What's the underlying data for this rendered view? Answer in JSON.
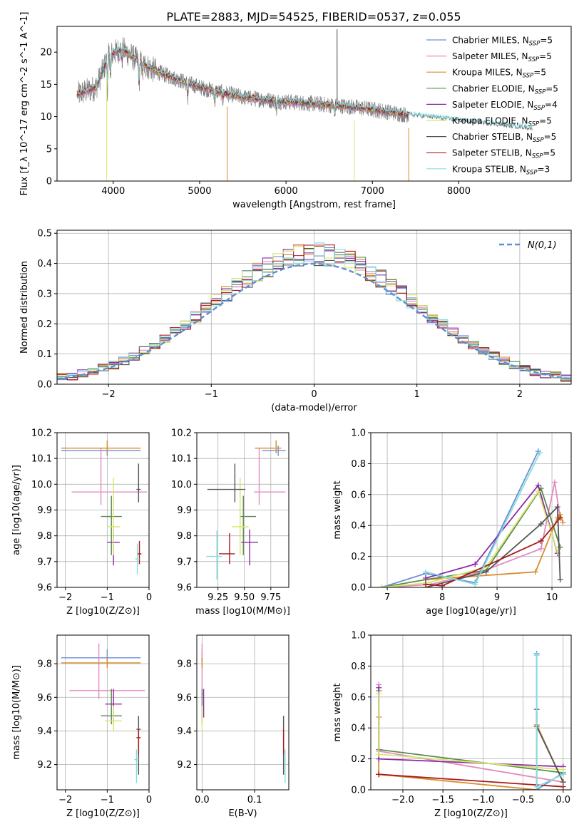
{
  "title": "PLATE=2883, MJD=54525, FIBERID=0537, z=0.055",
  "colors": {
    "s0": "#6b8fd6",
    "s1": "#e38bbf",
    "s2": "#d98b2b",
    "s3": "#5a8a50",
    "s4": "#8e2aa6",
    "s5": "#d6e86a",
    "s6": "#555555",
    "s7": "#a81b1b",
    "s8": "#86dde0",
    "gauss": "#5b8fd6",
    "grid": "#b0b0b0"
  },
  "legend_labels": [
    "Chabrier MILES, N_SSP=5",
    "Salpeter MILES, N_SSP=5",
    "Kroupa MILES, N_SSP=5",
    "Chabrier ELODIE, N_SSP=5",
    "Salpeter ELODIE, N_SSP=4",
    "Kroupa ELODIE, N_SSP=5",
    "Chabrier STELIB, N_SSP=5",
    "Salpeter STELIB, N_SSP=5",
    "Kroupa STELIB, N_SSP=3"
  ],
  "chart_data": [
    {
      "id": "spectrum",
      "type": "line",
      "xlabel": "wavelength [Angstrom, rest frame]",
      "ylabel": "Flux [f_λ 10^-17 erg cm^-2 s^-1 A^-1]",
      "xlim": [
        3350,
        9300
      ],
      "ylim": [
        0,
        24
      ],
      "xticks": [
        4000,
        5000,
        6000,
        7000,
        8000
      ],
      "yticks": [
        0,
        5,
        10,
        15,
        20
      ],
      "continuum": {
        "x": [
          3600,
          3800,
          3950,
          4100,
          4300,
          4500,
          4700,
          4900,
          5100,
          5300,
          5500,
          5700,
          5900,
          6100,
          6300,
          6500,
          6700,
          6900,
          7100,
          7300,
          7420
        ],
        "y": [
          13.5,
          14.5,
          19.5,
          20.5,
          18.5,
          17.0,
          16.0,
          15.0,
          14.2,
          13.6,
          13.0,
          12.7,
          12.4,
          12.2,
          12.0,
          11.8,
          11.6,
          11.3,
          10.9,
          10.5,
          10.2
        ]
      },
      "data_range": [
        3590,
        7420
      ],
      "models_range": [
        3580,
        7420
      ],
      "models_extension": [
        7420,
        8850
      ]
    },
    {
      "id": "residuals",
      "type": "line",
      "xlabel": "(data-model)/error",
      "ylabel": "Normed distribution",
      "xlim": [
        -2.5,
        2.5
      ],
      "ylim": [
        0,
        0.51
      ],
      "xticks": [
        -2,
        -1,
        0,
        1,
        2
      ],
      "yticks": [
        0.0,
        0.1,
        0.2,
        0.3,
        0.4,
        0.5
      ],
      "legend": "N(0,1)",
      "bin_width": 0.1
    },
    {
      "id": "age_vs_Z",
      "type": "scatter",
      "xlabel": "Z [log10(Z/Z⊙)]",
      "ylabel": "age  [log10(age/yr)]",
      "xlim": [
        -2.2,
        0.0
      ],
      "ylim": [
        9.6,
        10.2
      ],
      "xticks": [
        -2,
        -1,
        0
      ],
      "yticks": [
        9.6,
        9.7,
        9.8,
        9.9,
        10.0,
        10.1,
        10.2
      ],
      "points": [
        {
          "s": 0,
          "x": -1.0,
          "xerr": [
            1.1,
            0.8
          ],
          "y": 10.13,
          "yerr": [
            0.02,
            0.02
          ]
        },
        {
          "s": 1,
          "x": -1.15,
          "xerr": [
            0.7,
            1.1
          ],
          "y": 9.97,
          "yerr": [
            0.05,
            0.17
          ]
        },
        {
          "s": 2,
          "x": -1.0,
          "xerr": [
            1.1,
            0.8
          ],
          "y": 10.14,
          "yerr": [
            0.02,
            0.03
          ]
        },
        {
          "s": 3,
          "x": -0.9,
          "xerr": [
            0.25,
            0.25
          ],
          "y": 9.875,
          "yerr": [
            0.15,
            0.08
          ]
        },
        {
          "s": 4,
          "x": -0.85,
          "xerr": [
            0.15,
            0.15
          ],
          "y": 9.775,
          "yerr": [
            0.09,
            0.05
          ]
        },
        {
          "s": 5,
          "x": -0.85,
          "xerr": [
            0.15,
            0.15
          ],
          "y": 9.835,
          "yerr": [
            0.11,
            0.19
          ]
        },
        {
          "s": 6,
          "x": -0.25,
          "xerr": [
            0.05,
            0.05
          ],
          "y": 9.98,
          "yerr": [
            0.05,
            0.1
          ]
        },
        {
          "s": 7,
          "x": -0.23,
          "xerr": [
            0.05,
            0.05
          ],
          "y": 9.73,
          "yerr": [
            0.04,
            0.05
          ]
        },
        {
          "s": 8,
          "x": -0.28,
          "xerr": [
            0.05,
            0.05
          ],
          "y": 9.71,
          "yerr": [
            0.06,
            0.06
          ]
        }
      ]
    },
    {
      "id": "age_vs_mass",
      "type": "scatter",
      "xlabel": "mass [log10(M/M⊙)]",
      "ylabel": "",
      "xlim": [
        9.05,
        9.92
      ],
      "ylim": [
        9.6,
        10.2
      ],
      "xticks": [
        9.25,
        9.5,
        9.75
      ],
      "yticks": [
        9.6,
        9.7,
        9.8,
        9.9,
        10.0,
        10.1,
        10.2
      ],
      "points": [
        {
          "s": 0,
          "x": 9.82,
          "xerr": [
            0.15,
            0.07
          ],
          "y": 10.13,
          "yerr": [
            0.02,
            0.02
          ]
        },
        {
          "s": 1,
          "x": 9.64,
          "xerr": [
            0.05,
            0.25
          ],
          "y": 9.97,
          "yerr": [
            0.05,
            0.17
          ]
        },
        {
          "s": 2,
          "x": 9.8,
          "xerr": [
            0.2,
            0.05
          ],
          "y": 10.14,
          "yerr": [
            0.02,
            0.03
          ]
        },
        {
          "s": 3,
          "x": 9.49,
          "xerr": [
            0.03,
            0.12
          ],
          "y": 9.875,
          "yerr": [
            0.15,
            0.08
          ]
        },
        {
          "s": 4,
          "x": 9.55,
          "xerr": [
            0.08,
            0.08
          ],
          "y": 9.775,
          "yerr": [
            0.09,
            0.05
          ]
        },
        {
          "s": 5,
          "x": 9.46,
          "xerr": [
            0.08,
            0.08
          ],
          "y": 9.835,
          "yerr": [
            0.11,
            0.19
          ]
        },
        {
          "s": 6,
          "x": 9.41,
          "xerr": [
            0.26,
            0.1
          ],
          "y": 9.98,
          "yerr": [
            0.05,
            0.1
          ]
        },
        {
          "s": 7,
          "x": 9.36,
          "xerr": [
            0.1,
            0.05
          ],
          "y": 9.73,
          "yerr": [
            0.04,
            0.08
          ]
        },
        {
          "s": 8,
          "x": 9.24,
          "xerr": [
            0.1,
            0.05
          ],
          "y": 9.72,
          "yerr": [
            0.09,
            0.1
          ]
        }
      ]
    },
    {
      "id": "weight_vs_age",
      "type": "line",
      "xlabel": "age  [log10(age/yr)]",
      "ylabel": "mass weight",
      "xlim": [
        6.7,
        10.35
      ],
      "ylim": [
        0,
        1
      ],
      "xticks": [
        7,
        8,
        9,
        10
      ],
      "yticks": [
        0.0,
        0.2,
        0.4,
        0.6,
        0.8,
        1.0
      ],
      "series": [
        {
          "s": 0,
          "x": [
            6.9,
            7.7,
            8.6,
            9.75
          ],
          "y": [
            0.0,
            0.09,
            0.03,
            0.88
          ]
        },
        {
          "s": 1,
          "x": [
            7.0,
            7.8,
            8.7,
            9.8,
            10.05,
            10.15
          ],
          "y": [
            0.0,
            0.02,
            0.1,
            0.25,
            0.68,
            0.45
          ]
        },
        {
          "s": 2,
          "x": [
            7.7,
            9.7,
            10.1,
            10.15,
            10.2
          ],
          "y": [
            0.05,
            0.1,
            0.45,
            0.47,
            0.42
          ]
        },
        {
          "s": 3,
          "x": [
            6.9,
            7.7,
            8.8,
            9.8,
            10.15
          ],
          "y": [
            0.0,
            0.05,
            0.11,
            0.64,
            0.26
          ]
        },
        {
          "s": 4,
          "x": [
            7.7,
            8.6,
            9.75,
            10.1
          ],
          "y": [
            0.06,
            0.15,
            0.66,
            0.22
          ]
        },
        {
          "s": 5,
          "x": [
            6.9,
            7.75,
            8.8,
            9.75,
            10.1
          ],
          "y": [
            0.0,
            0.03,
            0.13,
            0.62,
            0.23
          ]
        },
        {
          "s": 6,
          "x": [
            7.7,
            8.8,
            9.8,
            10.1,
            10.15
          ],
          "y": [
            0.0,
            0.1,
            0.41,
            0.52,
            0.05
          ]
        },
        {
          "s": 7,
          "x": [
            7.7,
            8.0,
            9.8,
            10.15
          ],
          "y": [
            0.02,
            0.01,
            0.3,
            0.45
          ]
        },
        {
          "s": 8,
          "x": [
            7.7,
            8.6,
            9.78
          ],
          "y": [
            0.1,
            0.02,
            0.87
          ]
        }
      ]
    },
    {
      "id": "mass_vs_Z",
      "type": "scatter",
      "xlabel": "Z [log10(Z/Z⊙)]",
      "ylabel": "mass [log10(M/M⊙)]",
      "xlim": [
        -2.2,
        0.0
      ],
      "ylim": [
        9.05,
        9.97
      ],
      "xticks": [
        -2,
        -1,
        0
      ],
      "yticks": [
        9.2,
        9.4,
        9.6,
        9.8
      ],
      "points": [
        {
          "s": 0,
          "x": -1.0,
          "xerr": [
            1.1,
            0.8
          ],
          "y": 9.835,
          "yerr": [
            0.03,
            0.05
          ]
        },
        {
          "s": 1,
          "x": -1.2,
          "xerr": [
            0.7,
            1.1
          ],
          "y": 9.64,
          "yerr": [
            0.05,
            0.28
          ]
        },
        {
          "s": 2,
          "x": -1.0,
          "xerr": [
            1.1,
            0.8
          ],
          "y": 9.805,
          "yerr": [
            0.03,
            0.03
          ]
        },
        {
          "s": 3,
          "x": -0.9,
          "xerr": [
            0.25,
            0.25
          ],
          "y": 9.49,
          "yerr": [
            0.05,
            0.16
          ]
        },
        {
          "s": 4,
          "x": -0.85,
          "xerr": [
            0.2,
            0.2
          ],
          "y": 9.56,
          "yerr": [
            0.12,
            0.09
          ]
        },
        {
          "s": 5,
          "x": -0.85,
          "xerr": [
            0.2,
            0.2
          ],
          "y": 9.46,
          "yerr": [
            0.06,
            0.09
          ]
        },
        {
          "s": 6,
          "x": -0.25,
          "xerr": [
            0.05,
            0.05
          ],
          "y": 9.41,
          "yerr": [
            0.27,
            0.08
          ]
        },
        {
          "s": 7,
          "x": -0.25,
          "xerr": [
            0.05,
            0.05
          ],
          "y": 9.36,
          "yerr": [
            0.1,
            0.05
          ]
        },
        {
          "s": 8,
          "x": -0.3,
          "xerr": [
            0.05,
            0.05
          ],
          "y": 9.23,
          "yerr": [
            0.14,
            0.06
          ]
        }
      ]
    },
    {
      "id": "mass_vs_EBV",
      "type": "scatter",
      "xlabel": "E(B-V)",
      "ylabel": "",
      "xlim": [
        -0.01,
        0.165
      ],
      "ylim": [
        9.05,
        9.97
      ],
      "xticks": [
        0.0,
        0.1
      ],
      "yticks": [
        9.2,
        9.4,
        9.6,
        9.8
      ],
      "points": [
        {
          "s": 0,
          "x": 0.0,
          "y": 9.835,
          "yerr": [
            0.03,
            0.05
          ]
        },
        {
          "s": 1,
          "x": 0.0,
          "y": 9.64,
          "yerr": [
            0.05,
            0.28
          ]
        },
        {
          "s": 2,
          "x": 0.0,
          "y": 9.805,
          "yerr": [
            0.03,
            0.03
          ]
        },
        {
          "s": 3,
          "x": 0.0,
          "y": 9.49,
          "yerr": [
            0.05,
            0.16
          ]
        },
        {
          "s": 4,
          "x": 0.003,
          "y": 9.56,
          "yerr": [
            0.08,
            0.09
          ]
        },
        {
          "s": 5,
          "x": 0.0,
          "y": 9.46,
          "yerr": [
            0.06,
            0.09
          ]
        },
        {
          "s": 6,
          "x": 0.155,
          "y": 9.41,
          "yerr": [
            0.27,
            0.08
          ]
        },
        {
          "s": 7,
          "x": 0.155,
          "y": 9.36,
          "yerr": [
            0.1,
            0.05
          ]
        },
        {
          "s": 8,
          "x": 0.158,
          "y": 9.23,
          "yerr": [
            0.14,
            0.06
          ]
        }
      ]
    },
    {
      "id": "weight_vs_Z",
      "type": "line",
      "xlabel": "Z [log10(Z/Z⊙)]",
      "ylabel": "mass weight",
      "xlim": [
        -2.4,
        0.1
      ],
      "ylim": [
        0,
        1
      ],
      "xticks": [
        -2.0,
        -1.5,
        -1.0,
        -0.5,
        0.0
      ],
      "yticks": [
        0.0,
        0.2,
        0.4,
        0.6,
        0.8,
        1.0
      ],
      "series": [
        {
          "s": 0,
          "x": [
            -0.33,
            -0.33,
            0.0
          ],
          "y": [
            0.88,
            0.0,
            0.11
          ]
        },
        {
          "s": 1,
          "x": [
            -2.3,
            -2.3,
            0.0
          ],
          "y": [
            0.68,
            0.25,
            0.05
          ]
        },
        {
          "s": 2,
          "x": [
            -2.3,
            -2.3,
            -0.33,
            -0.33,
            0.0
          ],
          "y": [
            0.47,
            0.1,
            0.0,
            0.42,
            0.05
          ]
        },
        {
          "s": 3,
          "x": [
            -2.3,
            -2.3,
            0.0
          ],
          "y": [
            0.64,
            0.26,
            0.11
          ]
        },
        {
          "s": 4,
          "x": [
            -2.3,
            -2.3,
            0.0
          ],
          "y": [
            0.66,
            0.2,
            0.15
          ]
        },
        {
          "s": 5,
          "x": [
            -2.3,
            -2.3,
            0.0
          ],
          "y": [
            0.62,
            0.23,
            0.13
          ]
        },
        {
          "s": 6,
          "x": [
            -0.33,
            -0.33,
            0.0
          ],
          "y": [
            0.52,
            0.41,
            0.05
          ]
        },
        {
          "s": 7,
          "x": [
            -2.3,
            0.0
          ],
          "y": [
            0.1,
            0.02
          ]
        },
        {
          "s": 8,
          "x": [
            -0.33,
            -0.33,
            0.0
          ],
          "y": [
            0.87,
            0.02,
            0.1
          ]
        }
      ]
    }
  ]
}
